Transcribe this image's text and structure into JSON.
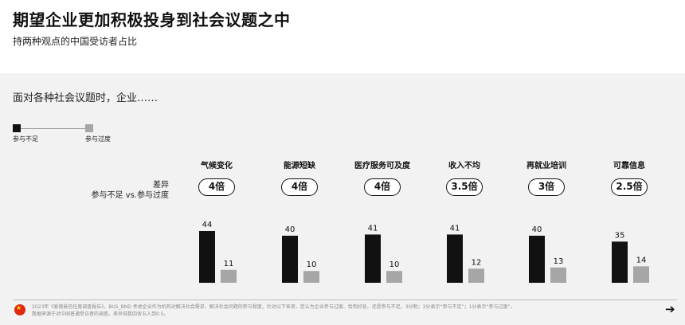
{
  "header": {
    "title": "期望企业更加积极投身到社会议题之中",
    "subtitle": "持两种观点的中国受访者占比"
  },
  "prompt": "面对各种社会议题时，企业……",
  "legend": {
    "under": "参与不足",
    "over": "参与过度"
  },
  "row_label": {
    "line1": "差异",
    "line2": "参与不足 vs.参与过度"
  },
  "colors": {
    "under": "#111111",
    "over": "#a6a6a6"
  },
  "chart_data": {
    "type": "bar",
    "categories": [
      "气候变化",
      "能源短缺",
      "医疗服务可及度",
      "收入不均",
      "再就业培训",
      "可靠信息"
    ],
    "series": [
      {
        "name": "参与不足",
        "values": [
          44,
          40,
          41,
          41,
          40,
          35
        ]
      },
      {
        "name": "参与过度",
        "values": [
          11,
          10,
          10,
          12,
          13,
          14
        ]
      }
    ],
    "ratios": [
      "4倍",
      "4倍",
      "4倍",
      "3.5倍",
      "3倍",
      "2.5倍"
    ],
    "ylim": [
      0,
      44
    ]
  },
  "footer": {
    "note_line1": "2023年《爱德曼信任度调查报告》。BUS_BND 考虑企业作为机构对解决社会需求、解决社会问题的参与程度，针对以下各项，您认为企业参与过度、恰到好处、还是参与不足。3分制；3分表示“参与不足”；1分表示“参与过度”。",
    "note_line2": "数据来源于对中国普通受访者的调查。差异倍数四舍五入到0.5。"
  }
}
